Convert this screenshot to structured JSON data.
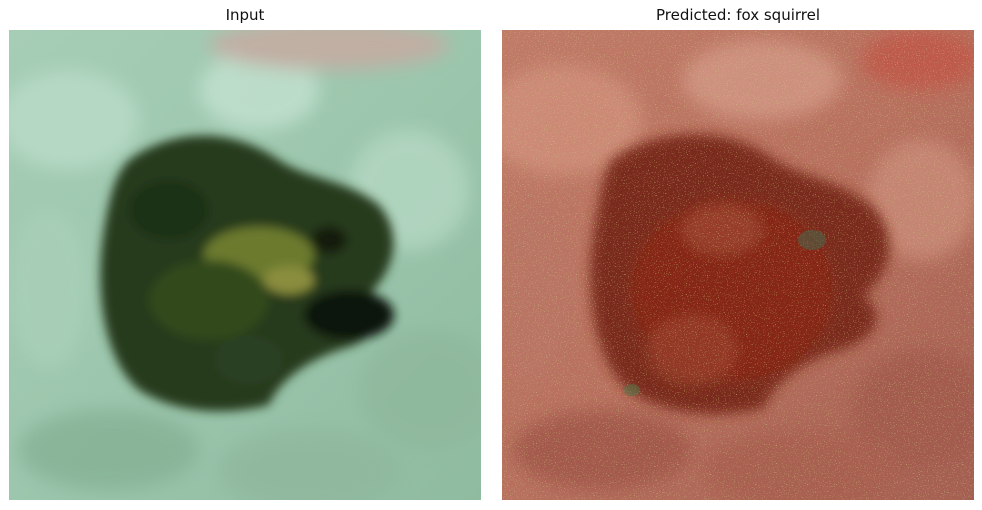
{
  "panels": {
    "input": {
      "title": "Input"
    },
    "output": {
      "title": "Predicted: fox squirrel"
    }
  },
  "colors": {
    "background": "#ffffff",
    "title_text": "#111111",
    "input_background": "#9fc8b0",
    "frog_body": "#22371c",
    "saliency_overlay": "#a8554a",
    "saliency_hot": "#8a2818",
    "saliency_speckle": "#9aa83a"
  }
}
